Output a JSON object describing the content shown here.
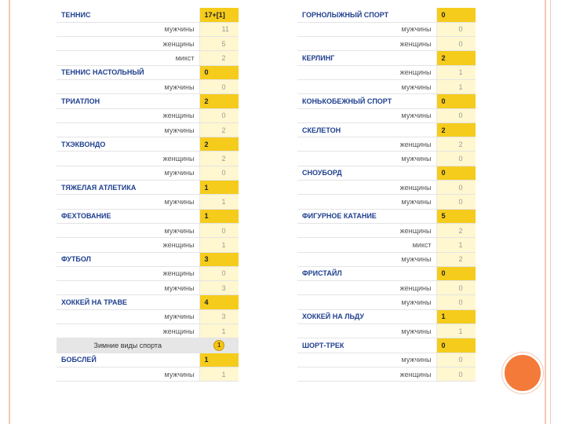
{
  "left_table": [
    {
      "type": "sport",
      "name": "ТЕННИС",
      "value": "17+[1]"
    },
    {
      "type": "sub",
      "name": "мужчины",
      "value": "11"
    },
    {
      "type": "sub",
      "name": "женщины",
      "value": "5"
    },
    {
      "type": "sub",
      "name": "микст",
      "value": "2"
    },
    {
      "type": "sport",
      "name": "ТЕННИС НАСТОЛЬНЫЙ",
      "value": "0"
    },
    {
      "type": "sub",
      "name": "мужчины",
      "value": "0"
    },
    {
      "type": "sport",
      "name": "ТРИАТЛОН",
      "value": "2"
    },
    {
      "type": "sub",
      "name": "женщины",
      "value": "0"
    },
    {
      "type": "sub",
      "name": "мужчины",
      "value": "2"
    },
    {
      "type": "sport",
      "name": "ТХЭКВОНДО",
      "value": "2"
    },
    {
      "type": "sub",
      "name": "женщины",
      "value": "2"
    },
    {
      "type": "sub",
      "name": "мужчины",
      "value": "0"
    },
    {
      "type": "sport",
      "name": "ТЯЖЕЛАЯ АТЛЕТИКА",
      "value": "1"
    },
    {
      "type": "sub",
      "name": "мужчины",
      "value": "1"
    },
    {
      "type": "sport",
      "name": "ФЕХТОВАНИЕ",
      "value": "1"
    },
    {
      "type": "sub",
      "name": "мужчины",
      "value": "0"
    },
    {
      "type": "sub",
      "name": "женщины",
      "value": "1"
    },
    {
      "type": "sport",
      "name": "ФУТБОЛ",
      "value": "3"
    },
    {
      "type": "sub",
      "name": "женщины",
      "value": "0"
    },
    {
      "type": "sub",
      "name": "мужчины",
      "value": "3"
    },
    {
      "type": "sport",
      "name": "ХОККЕЙ НА ТРАВЕ",
      "value": "4"
    },
    {
      "type": "sub",
      "name": "мужчины",
      "value": "3"
    },
    {
      "type": "sub",
      "name": "женщины",
      "value": "1"
    },
    {
      "type": "season",
      "name": "Зимние виды спорта",
      "value": "1"
    },
    {
      "type": "sport",
      "name": "БОБСЛЕЙ",
      "value": "1"
    },
    {
      "type": "sub",
      "name": "мужчины",
      "value": "1"
    }
  ],
  "right_table": [
    {
      "type": "sport",
      "name": "ГОРНОЛЫЖНЫЙ СПОРТ",
      "value": "0"
    },
    {
      "type": "sub",
      "name": "мужчины",
      "value": "0"
    },
    {
      "type": "sub",
      "name": "женщины",
      "value": "0"
    },
    {
      "type": "sport",
      "name": "КЕРЛИНГ",
      "value": "2"
    },
    {
      "type": "sub",
      "name": "женщины",
      "value": "1"
    },
    {
      "type": "sub",
      "name": "мужчины",
      "value": "1"
    },
    {
      "type": "sport",
      "name": "КОНЬКОБЕЖНЫЙ СПОРТ",
      "value": "0"
    },
    {
      "type": "sub",
      "name": "мужчины",
      "value": "0"
    },
    {
      "type": "sport",
      "name": "СКЕЛЕТОН",
      "value": "2"
    },
    {
      "type": "sub",
      "name": "женщины",
      "value": "2"
    },
    {
      "type": "sub",
      "name": "мужчины",
      "value": "0"
    },
    {
      "type": "sport",
      "name": "СНОУБОРД",
      "value": "0"
    },
    {
      "type": "sub",
      "name": "женщины",
      "value": "0"
    },
    {
      "type": "sub",
      "name": "мужчины",
      "value": "0"
    },
    {
      "type": "sport",
      "name": "ФИГУРНОЕ КАТАНИЕ",
      "value": "5"
    },
    {
      "type": "sub",
      "name": "женщины",
      "value": "2"
    },
    {
      "type": "sub",
      "name": "микст",
      "value": "1"
    },
    {
      "type": "sub",
      "name": "мужчины",
      "value": "2"
    },
    {
      "type": "sport",
      "name": "ФРИСТАЙЛ",
      "value": "0"
    },
    {
      "type": "sub",
      "name": "женщины",
      "value": "0"
    },
    {
      "type": "sub",
      "name": "мужчины",
      "value": "0"
    },
    {
      "type": "sport",
      "name": "ХОККЕЙ НА ЛЬДУ",
      "value": "1"
    },
    {
      "type": "sub",
      "name": "мужчины",
      "value": "1"
    },
    {
      "type": "sport",
      "name": "ШОРТ-ТРЕК",
      "value": "0"
    },
    {
      "type": "sub",
      "name": "мужчины",
      "value": "0"
    },
    {
      "type": "sub",
      "name": "женщины",
      "value": "0"
    }
  ],
  "colors": {
    "frame": "#f2c8b4",
    "accent_circle": "#f47a3a",
    "highlight": "#f5cc1b",
    "cell_bg": "#fff7d0",
    "link": "#1f3f8f"
  },
  "icons": {
    "season_badge": "gold-coin-icon"
  }
}
